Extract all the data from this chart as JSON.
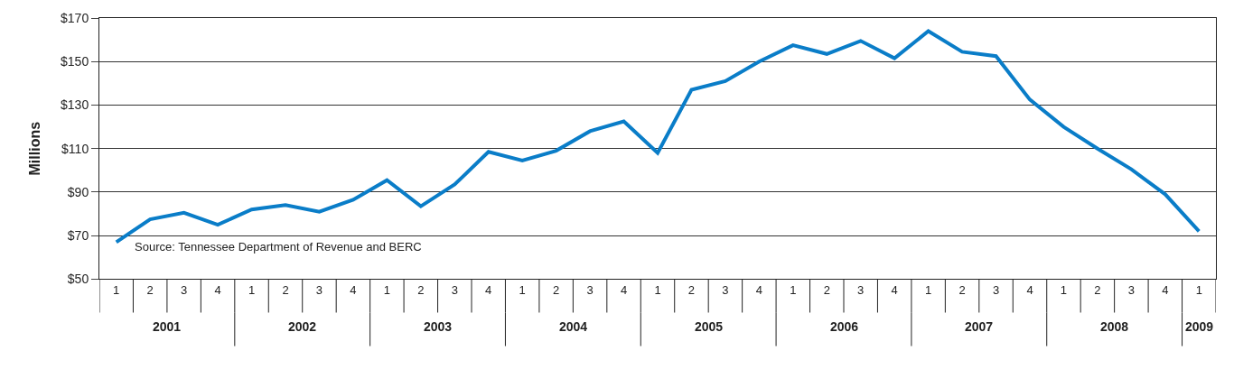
{
  "chart_data": {
    "type": "line",
    "ylabel": "Millions",
    "categories": [
      "1",
      "2",
      "3",
      "4",
      "1",
      "2",
      "3",
      "4",
      "1",
      "2",
      "3",
      "4",
      "1",
      "2",
      "3",
      "4",
      "1",
      "2",
      "3",
      "4",
      "1",
      "2",
      "3",
      "4",
      "1",
      "2",
      "3",
      "4",
      "1",
      "2",
      "3",
      "4",
      "1"
    ],
    "series": [
      {
        "color": "#0a7dc8",
        "values": [
          67,
          77.5,
          80.5,
          75,
          82,
          84,
          81,
          86.5,
          95.5,
          83.5,
          93.5,
          108.5,
          104.5,
          109,
          118,
          122.5,
          108,
          137,
          141,
          150,
          157.5,
          153.5,
          159.5,
          151.5,
          164,
          154.5,
          152.5,
          132.5,
          120,
          110,
          100.5,
          89,
          72
        ]
      }
    ],
    "ylim": [
      50,
      170
    ],
    "yticks": [
      {
        "value": 50,
        "label": "$50"
      },
      {
        "value": 70,
        "label": "$70"
      },
      {
        "value": 90,
        "label": "$90"
      },
      {
        "value": 110,
        "label": "$110"
      },
      {
        "value": 130,
        "label": "$130"
      },
      {
        "value": 150,
        "label": "$150"
      },
      {
        "value": 170,
        "label": "$170"
      }
    ],
    "annotations": [
      "Source: Tennessee Department of Revenue and BERC",
      "2001",
      "2002",
      "2003",
      "2004",
      "2005",
      "2006",
      "2007",
      "2008",
      "2009"
    ],
    "grid": "y",
    "marker": "none",
    "line_style": "solid"
  }
}
